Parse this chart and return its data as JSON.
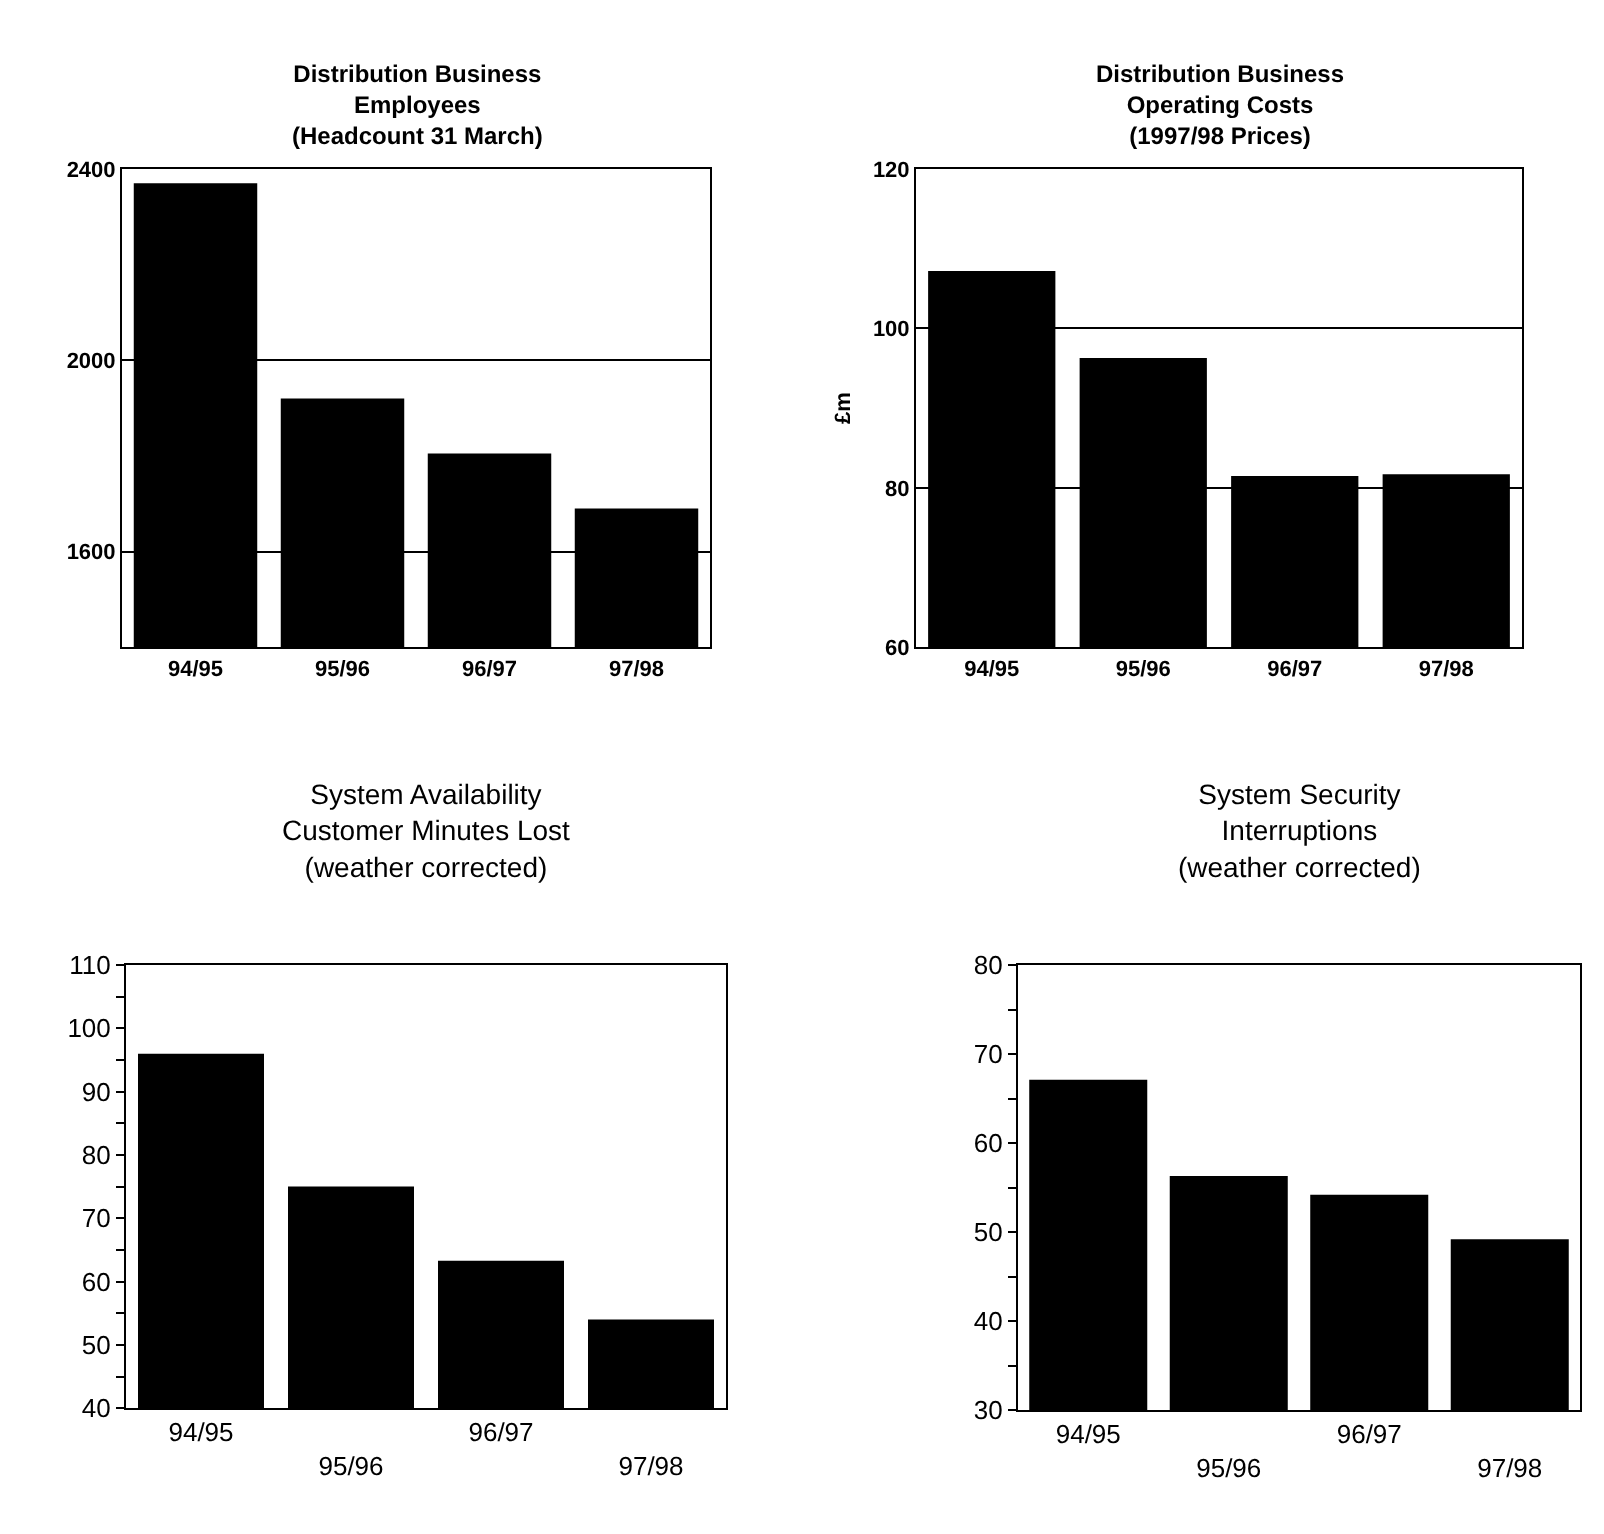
{
  "chart_data": [
    {
      "type": "bar",
      "title": "Distribution Business\nEmployees\n(Headcount 31 March)",
      "categories": [
        "94/95",
        "95/96",
        "96/97",
        "97/98"
      ],
      "values": [
        2370,
        1920,
        1805,
        1690
      ],
      "color": "#000000",
      "ylim": [
        1400,
        2400
      ],
      "yticks": [
        1600,
        2000,
        2400
      ],
      "grid": "y"
    },
    {
      "type": "bar",
      "title": "Distribution Business\nOperating Costs\n(1997/98 Prices)",
      "ylabel": "£m",
      "categories": [
        "94/95",
        "95/96",
        "96/97",
        "97/98"
      ],
      "values": [
        107.2,
        96.3,
        81.5,
        81.7
      ],
      "color": "#000000",
      "ylim": [
        60,
        120
      ],
      "yticks": [
        60,
        80,
        100,
        120
      ],
      "grid": "y"
    },
    {
      "type": "bar",
      "title": "System Availability\nCustomer Minutes Lost\n(weather corrected)",
      "categories": [
        "94/95",
        "95/96",
        "96/97",
        "97/98"
      ],
      "values": [
        96,
        75,
        63.3,
        54
      ],
      "color": "#000000",
      "ylim": [
        40,
        110
      ],
      "yticks": [
        40,
        {
          "value": 45,
          "label": null
        },
        50,
        {
          "value": 55,
          "label": null
        },
        60,
        {
          "value": 65,
          "label": null
        },
        70,
        {
          "value": 75,
          "label": null
        },
        80,
        {
          "value": 85,
          "label": null
        },
        90,
        {
          "value": 95,
          "label": null
        },
        100,
        {
          "value": 105,
          "label": null
        },
        110
      ]
    },
    {
      "type": "bar",
      "title": "System Security\nInterruptions\n(weather corrected)",
      "categories": [
        "94/95",
        "95/96",
        "96/97",
        "97/98"
      ],
      "values": [
        67.1,
        56.3,
        54.2,
        49.2
      ],
      "color": "#000000",
      "ylim": [
        30,
        80
      ],
      "yticks": [
        30,
        {
          "value": 35,
          "label": null
        },
        40,
        {
          "value": 45,
          "label": null
        },
        50,
        {
          "value": 55,
          "label": null
        },
        60,
        {
          "value": 65,
          "label": null
        },
        70,
        {
          "value": 75,
          "label": null
        },
        80
      ]
    }
  ]
}
